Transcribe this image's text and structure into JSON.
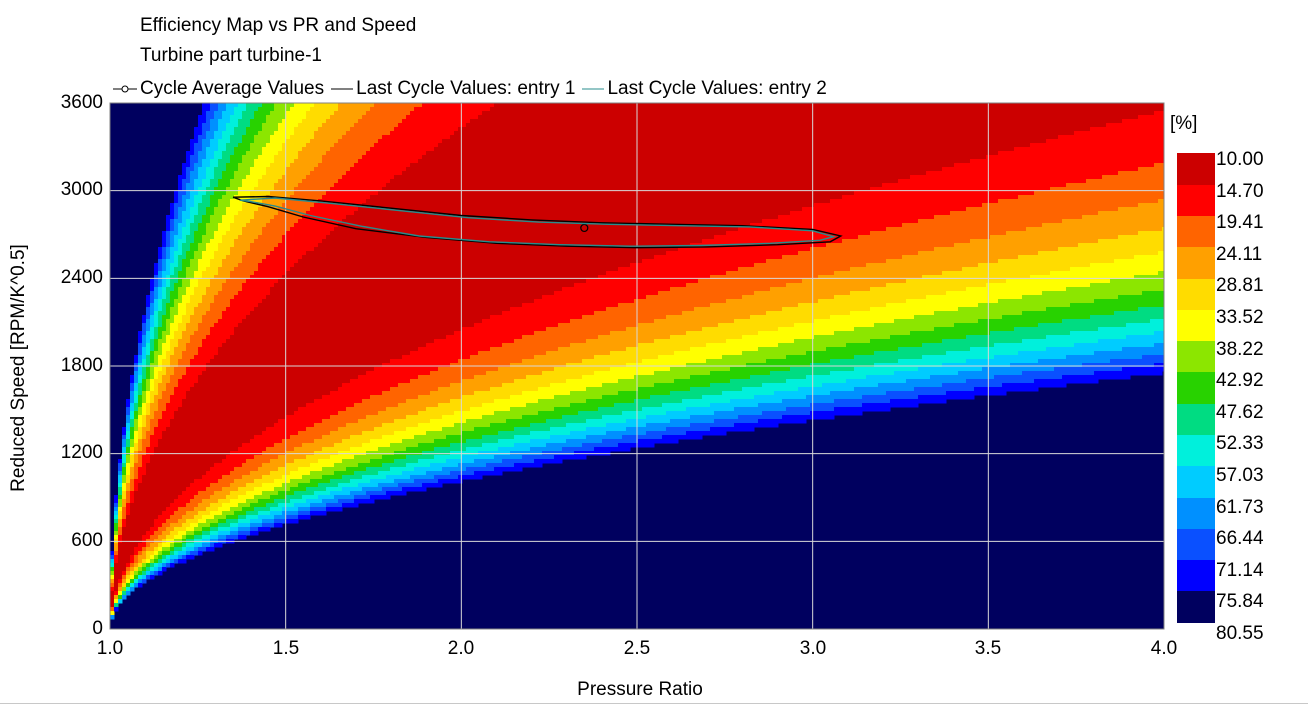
{
  "chart_data": {
    "type": "heatmap",
    "title": "Efficiency Map vs PR and Speed",
    "subtitle": "Turbine part turbine-1",
    "xlabel": "Pressure Ratio",
    "ylabel": "Reduced Speed [RPM/K^0.5]",
    "xlim": [
      1.0,
      4.0
    ],
    "ylim": [
      0,
      3600
    ],
    "x_ticks": [
      "1.0",
      "1.5",
      "2.0",
      "2.5",
      "3.0",
      "3.5",
      "4.0"
    ],
    "y_ticks": [
      "0",
      "600",
      "1200",
      "1800",
      "2400",
      "3000",
      "3600"
    ],
    "grid": true,
    "colorbar": {
      "unit": "[%]",
      "levels": [
        "10.00",
        "14.70",
        "19.41",
        "24.11",
        "28.81",
        "33.52",
        "38.22",
        "42.92",
        "47.62",
        "52.33",
        "57.03",
        "61.73",
        "66.44",
        "71.14",
        "75.84",
        "80.55"
      ],
      "colors": [
        "#00005f",
        "#0000ff",
        "#0a50ff",
        "#0090ff",
        "#00ccff",
        "#00f0dc",
        "#00dc82",
        "#28d200",
        "#8ce600",
        "#ffff00",
        "#ffdc00",
        "#ffa000",
        "#ff6400",
        "#ff0000",
        "#cc0000"
      ]
    },
    "legend": {
      "placement": "top",
      "entries": [
        "Cycle Average Values",
        "Last Cycle Values: entry 1",
        "Last Cycle Values: entry 2"
      ]
    },
    "series": [
      {
        "name": "Cycle Average Values",
        "type": "point",
        "x": [
          2.35
        ],
        "y": [
          2745
        ],
        "color": "#000000"
      },
      {
        "name": "Last Cycle Values: entry 1",
        "type": "line",
        "color": "#000000",
        "x": [
          1.35,
          1.45,
          1.6,
          1.8,
          2.0,
          2.2,
          2.4,
          2.6,
          2.8,
          3.0,
          3.08,
          3.05,
          2.9,
          2.7,
          2.5,
          2.3,
          2.1,
          1.9,
          1.7,
          1.55,
          1.45,
          1.38,
          1.35
        ],
        "y": [
          2955,
          2960,
          2930,
          2880,
          2830,
          2800,
          2780,
          2770,
          2760,
          2735,
          2690,
          2650,
          2630,
          2615,
          2610,
          2620,
          2640,
          2680,
          2740,
          2820,
          2890,
          2930,
          2955
        ]
      },
      {
        "name": "Last Cycle Values: entry 2",
        "type": "line",
        "color": "#2a8c8c",
        "x": [
          1.37,
          1.47,
          1.62,
          1.82,
          2.02,
          2.22,
          2.42,
          2.62,
          2.82,
          3.0,
          3.06,
          3.02,
          2.88,
          2.68,
          2.48,
          2.28,
          2.08,
          1.88,
          1.72,
          1.57,
          1.47,
          1.4,
          1.37
        ],
        "y": [
          2935,
          2950,
          2915,
          2865,
          2815,
          2785,
          2770,
          2760,
          2752,
          2725,
          2685,
          2660,
          2640,
          2625,
          2620,
          2630,
          2650,
          2690,
          2755,
          2830,
          2895,
          2925,
          2935
        ]
      }
    ]
  }
}
